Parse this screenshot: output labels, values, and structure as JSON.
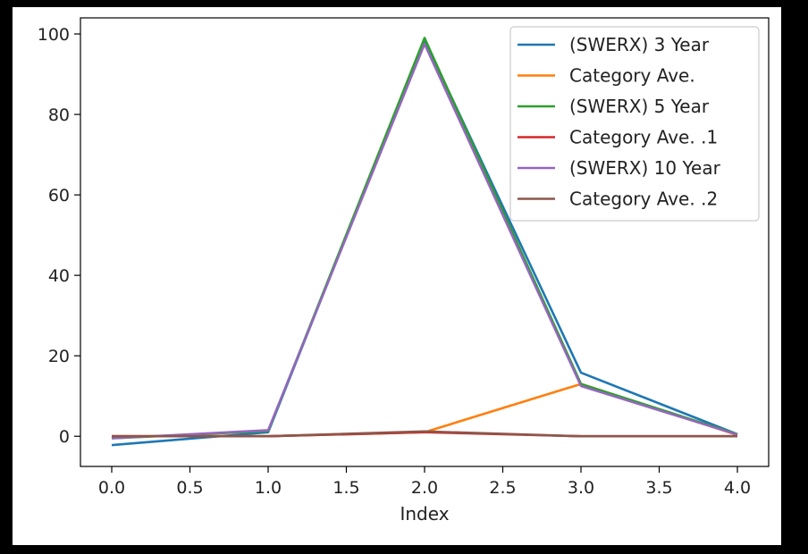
{
  "chart_data": {
    "type": "line",
    "title": "",
    "xlabel": "Index",
    "ylabel": "",
    "x": [
      0.0,
      1.0,
      2.0,
      3.0,
      4.0
    ],
    "xlim": [
      -0.2,
      4.2
    ],
    "ylim": [
      -7.5,
      104
    ],
    "xticks": [
      "0.0",
      "0.5",
      "1.0",
      "1.5",
      "2.0",
      "2.5",
      "3.0",
      "3.5",
      "4.0"
    ],
    "xtick_values": [
      0,
      0.5,
      1,
      1.5,
      2,
      2.5,
      3,
      3.5,
      4
    ],
    "yticks": [
      "0",
      "20",
      "40",
      "60",
      "80",
      "100"
    ],
    "ytick_values": [
      0,
      20,
      40,
      60,
      80,
      100
    ],
    "grid": false,
    "legend_position": "top-right",
    "series": [
      {
        "name": "(SWERX) 3 Year",
        "color": "#1f77b4",
        "values": [
          -2.2,
          1.0,
          98.5,
          15.8,
          0.5
        ]
      },
      {
        "name": "Category Ave.",
        "color": "#ff7f0e",
        "values": [
          0.0,
          0.0,
          1.0,
          13.0,
          0.3
        ]
      },
      {
        "name": "(SWERX) 5 Year",
        "color": "#2ca02c",
        "values": [
          -0.5,
          1.3,
          99.0,
          13.0,
          0.5
        ]
      },
      {
        "name": "Category Ave. .1",
        "color": "#d62728",
        "values": [
          0.0,
          0.0,
          1.0,
          0.0,
          0.0
        ]
      },
      {
        "name": "(SWERX) 10 Year",
        "color": "#9467bd",
        "values": [
          -0.5,
          1.5,
          97.5,
          12.5,
          0.4
        ]
      },
      {
        "name": "Category Ave. .2",
        "color": "#8c564b",
        "values": [
          0.0,
          0.0,
          1.2,
          0.0,
          0.0
        ]
      }
    ]
  }
}
